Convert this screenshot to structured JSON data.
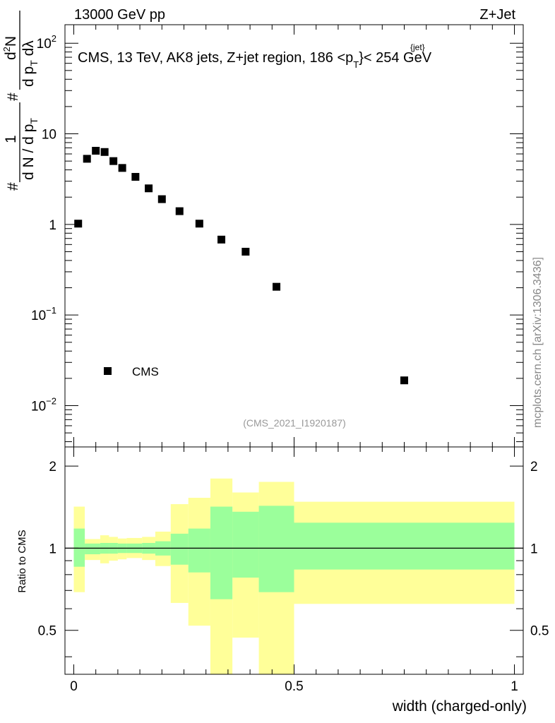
{
  "header": {
    "left_label": "13000 GeV pp",
    "right_label": "Z+Jet"
  },
  "side_label": "mcplots.cern.ch [arXiv:1306.3436]",
  "chart_data": [
    {
      "type": "scatter",
      "panel": "main",
      "title": "CMS, 13 TeV, AK8 jets, Z+jet region, 186 <p",
      "title_sup": "{jet}",
      "title_sub": "T",
      "title_tail": "}< 254 GeV",
      "ylabel": {
        "num_prefix": "1",
        "den_main": "d N / d p",
        "den_sub": "T",
        "frac2_num": "d",
        "frac2_num_sup": "2",
        "frac2_num_tail": "N",
        "frac2_den_main": "d p",
        "frac2_den_sub": "T",
        "frac2_den_tail": " dλ",
        "hash": "#"
      },
      "yscale": "log",
      "ylim": [
        0.0035,
        160
      ],
      "xlim": [
        -0.02,
        1.02
      ],
      "y_tick_labels": [
        {
          "value": 0.01,
          "base": "10",
          "exp": "−2"
        },
        {
          "value": 0.1,
          "base": "10",
          "exp": "−1"
        },
        {
          "value": 1,
          "base": "1",
          "exp": ""
        },
        {
          "value": 10,
          "base": "10",
          "exp": ""
        },
        {
          "value": 100,
          "base": "10",
          "exp": "2"
        }
      ],
      "legend": {
        "label": "CMS",
        "position": "lower-left"
      },
      "watermark": "(CMS_2021_I1920187)",
      "series": [
        {
          "name": "CMS",
          "points": [
            {
              "x": 0.01,
              "y": 1.02
            },
            {
              "x": 0.03,
              "y": 5.3
            },
            {
              "x": 0.05,
              "y": 6.5
            },
            {
              "x": 0.07,
              "y": 6.3
            },
            {
              "x": 0.09,
              "y": 5.0
            },
            {
              "x": 0.11,
              "y": 4.2
            },
            {
              "x": 0.14,
              "y": 3.35
            },
            {
              "x": 0.17,
              "y": 2.5
            },
            {
              "x": 0.2,
              "y": 1.9
            },
            {
              "x": 0.24,
              "y": 1.4
            },
            {
              "x": 0.285,
              "y": 1.02
            },
            {
              "x": 0.335,
              "y": 0.68
            },
            {
              "x": 0.39,
              "y": 0.5
            },
            {
              "x": 0.46,
              "y": 0.205
            },
            {
              "x": 0.75,
              "y": 0.019
            }
          ]
        }
      ]
    },
    {
      "type": "area",
      "panel": "ratio",
      "ylabel": "Ratio to CMS",
      "yscale": "log",
      "ylim": [
        0.345,
        2.35
      ],
      "xlim": [
        -0.02,
        1.02
      ],
      "y_tick_labels": [
        {
          "value": 0.5,
          "label": "0.5"
        },
        {
          "value": 1,
          "label": "1"
        },
        {
          "value": 2,
          "label": "2"
        }
      ],
      "x_tick_labels": [
        {
          "value": 0,
          "label": "0"
        },
        {
          "value": 0.5,
          "label": "0.5"
        },
        {
          "value": 1,
          "label": "1"
        }
      ],
      "xlabel": "width (charged-only)",
      "reference_line": 1,
      "bands": [
        {
          "x0": 0.0,
          "x1": 0.025,
          "inner_lo": 0.855,
          "inner_hi": 1.18,
          "outer_lo": 0.69,
          "outer_hi": 1.42
        },
        {
          "x0": 0.025,
          "x1": 0.06,
          "inner_lo": 0.95,
          "inner_hi": 1.04,
          "outer_lo": 0.905,
          "outer_hi": 1.08
        },
        {
          "x0": 0.06,
          "x1": 0.08,
          "inner_lo": 0.955,
          "inner_hi": 1.045,
          "outer_lo": 0.88,
          "outer_hi": 1.115
        },
        {
          "x0": 0.08,
          "x1": 0.1,
          "inner_lo": 0.955,
          "inner_hi": 1.045,
          "outer_lo": 0.9,
          "outer_hi": 1.1
        },
        {
          "x0": 0.1,
          "x1": 0.12,
          "inner_lo": 0.96,
          "inner_hi": 1.04,
          "outer_lo": 0.91,
          "outer_hi": 1.085
        },
        {
          "x0": 0.12,
          "x1": 0.155,
          "inner_lo": 0.96,
          "inner_hi": 1.04,
          "outer_lo": 0.92,
          "outer_hi": 1.09
        },
        {
          "x0": 0.155,
          "x1": 0.185,
          "inner_lo": 0.955,
          "inner_hi": 1.045,
          "outer_lo": 0.905,
          "outer_hi": 1.1
        },
        {
          "x0": 0.185,
          "x1": 0.22,
          "inner_lo": 0.94,
          "inner_hi": 1.06,
          "outer_lo": 0.86,
          "outer_hi": 1.15
        },
        {
          "x0": 0.22,
          "x1": 0.26,
          "inner_lo": 0.87,
          "inner_hi": 1.13,
          "outer_lo": 0.63,
          "outer_hi": 1.45
        },
        {
          "x0": 0.26,
          "x1": 0.31,
          "inner_lo": 0.815,
          "inner_hi": 1.18,
          "outer_lo": 0.52,
          "outer_hi": 1.53
        },
        {
          "x0": 0.31,
          "x1": 0.36,
          "inner_lo": 0.65,
          "inner_hi": 1.42,
          "outer_lo": 0.345,
          "outer_hi": 1.8
        },
        {
          "x0": 0.36,
          "x1": 0.42,
          "inner_lo": 0.78,
          "inner_hi": 1.36,
          "outer_lo": 0.47,
          "outer_hi": 1.6
        },
        {
          "x0": 0.42,
          "x1": 0.5,
          "inner_lo": 0.69,
          "inner_hi": 1.43,
          "outer_lo": 0.345,
          "outer_hi": 1.75
        },
        {
          "x0": 0.5,
          "x1": 1.0,
          "inner_lo": 0.835,
          "inner_hi": 1.24,
          "outer_lo": 0.625,
          "outer_hi": 1.48
        }
      ]
    }
  ],
  "colors": {
    "inner_band": "#9bff9b",
    "outer_band": "#ffff99",
    "marker": "#000000",
    "watermark": "#999999",
    "side_label": "#888888"
  }
}
